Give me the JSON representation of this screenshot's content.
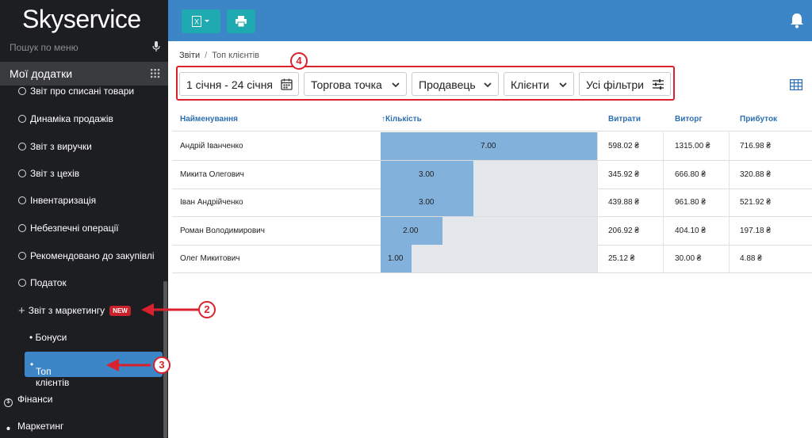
{
  "sidebar": {
    "logo": "Skyservice",
    "search_placeholder": "Пошук по меню",
    "my_apps": "Мої додатки",
    "items": [
      {
        "label": "Звіт про списані товари",
        "icon": "circle-icon"
      },
      {
        "label": "Динаміка продажів",
        "icon": "circle-icon"
      },
      {
        "label": "Звіт з виручки",
        "icon": "circle-icon"
      },
      {
        "label": "Звіт з цехів",
        "icon": "circle-icon"
      },
      {
        "label": "Інвентаризація",
        "icon": "circle-icon"
      },
      {
        "label": "Небезпечні операції",
        "icon": "circle-icon"
      },
      {
        "label": "Рекомендовано до закупівлі",
        "icon": "circle-icon"
      },
      {
        "label": "Податок",
        "icon": "circle-icon"
      }
    ],
    "marketing_report": {
      "label": "Звіт з маркетингу",
      "badge": "NEW"
    },
    "sub_items": [
      {
        "label": "Бонуси"
      },
      {
        "label": "Топ клієнтів"
      }
    ],
    "bottom_items": [
      {
        "label": "Фінанси",
        "icon": "dollar-icon"
      },
      {
        "label": "Маркетинг",
        "icon": "users-icon"
      }
    ]
  },
  "breadcrumb": {
    "parent": "Звіти",
    "separator": "/",
    "current": "Топ клієнтів"
  },
  "filters": {
    "date_range": "1 січня - 24 січня",
    "point": "Торгова точка",
    "seller": "Продавець",
    "clients": "Клієнти",
    "all_filters": "Усі фільтри"
  },
  "table": {
    "headers": {
      "name": "Найменування",
      "quantity": "Кількість",
      "costs": "Витрати",
      "revenue": "Виторг",
      "profit": "Прибуток"
    },
    "max_quantity": 7,
    "rows": [
      {
        "name": "Андрій Іванченко",
        "quantity": 7.0,
        "quantity_label": "7.00",
        "costs": "598.02 ₴",
        "revenue": "1315.00 ₴",
        "profit": "716.98 ₴"
      },
      {
        "name": "Микита Олегович",
        "quantity": 3.0,
        "quantity_label": "3.00",
        "costs": "345.92 ₴",
        "revenue": "666.80 ₴",
        "profit": "320.88 ₴"
      },
      {
        "name": "Іван Андрійченко",
        "quantity": 3.0,
        "quantity_label": "3.00",
        "costs": "439.88 ₴",
        "revenue": "961.80 ₴",
        "profit": "521.92 ₴"
      },
      {
        "name": "Роман Володимирович",
        "quantity": 2.0,
        "quantity_label": "2.00",
        "costs": "206.92 ₴",
        "revenue": "404.10 ₴",
        "profit": "197.18 ₴"
      },
      {
        "name": "Олег Микитович",
        "quantity": 1.0,
        "quantity_label": "1.00",
        "costs": "25.12 ₴",
        "revenue": "30.00 ₴",
        "profit": "4.88 ₴"
      }
    ]
  },
  "annotations": [
    "2",
    "3",
    "4"
  ],
  "colors": {
    "accent": "#3c85c6",
    "sidebar": "#1d1e21",
    "bar": "#82b1dc",
    "annotation": "#d9222e",
    "toolbar_button": "#1fa9b0"
  }
}
